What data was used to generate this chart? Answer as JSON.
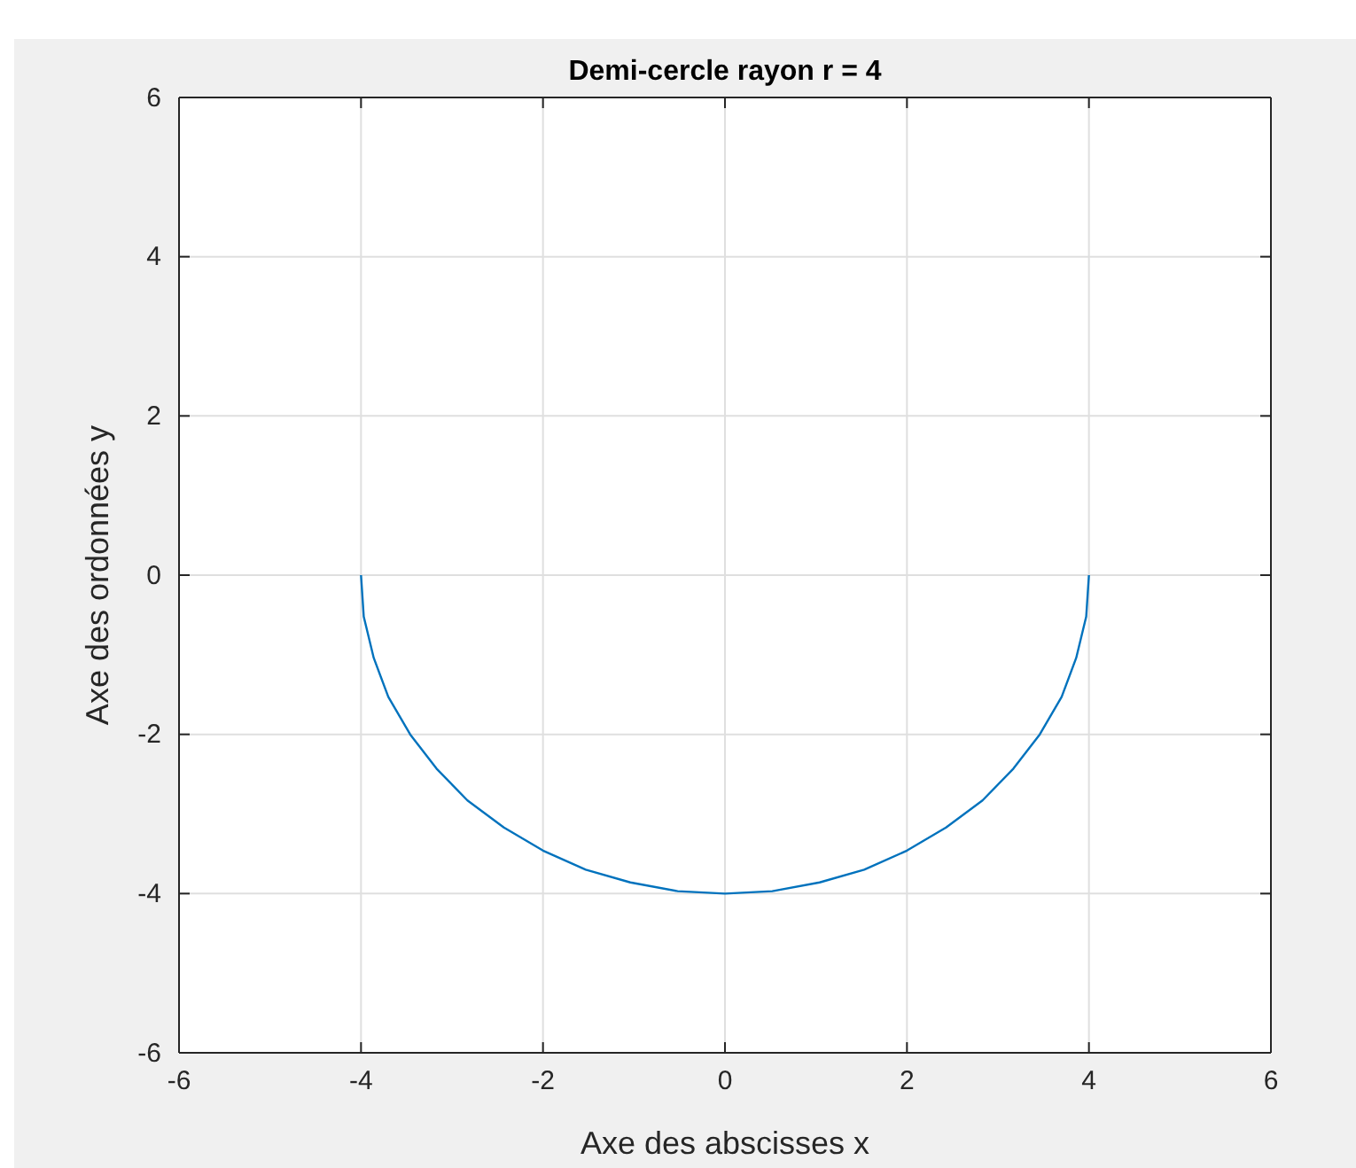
{
  "chart_data": {
    "type": "line",
    "title": "Demi-cercle rayon r = 4",
    "xlabel": "Axe des abscisses x",
    "ylabel": "Axe des ordonnées y",
    "series": [
      {
        "color": "#0072bd",
        "x": [
          -4,
          -3.97,
          -3.86,
          -3.7,
          -3.46,
          -3.17,
          -2.83,
          -2.43,
          -2,
          -1.53,
          -1.04,
          -0.52,
          0,
          0.52,
          1.04,
          1.53,
          2,
          2.43,
          2.83,
          3.17,
          3.46,
          3.7,
          3.86,
          3.97,
          4
        ],
        "values": [
          0,
          -0.52,
          -1.04,
          -1.53,
          -2,
          -2.43,
          -2.83,
          -3.17,
          -3.46,
          -3.7,
          -3.86,
          -3.97,
          -4,
          -3.97,
          -3.86,
          -3.7,
          -3.46,
          -3.17,
          -2.83,
          -2.43,
          -2,
          -1.53,
          -1.04,
          -0.52,
          0
        ]
      }
    ],
    "xlim": [
      -6,
      6
    ],
    "ylim": [
      -6,
      6
    ],
    "xticks": [
      -6,
      -4,
      -2,
      0,
      2,
      4,
      6
    ],
    "yticks": [
      -6,
      -4,
      -2,
      0,
      2,
      4,
      6
    ],
    "grid": true,
    "marker": "none",
    "line_style": "solid"
  }
}
